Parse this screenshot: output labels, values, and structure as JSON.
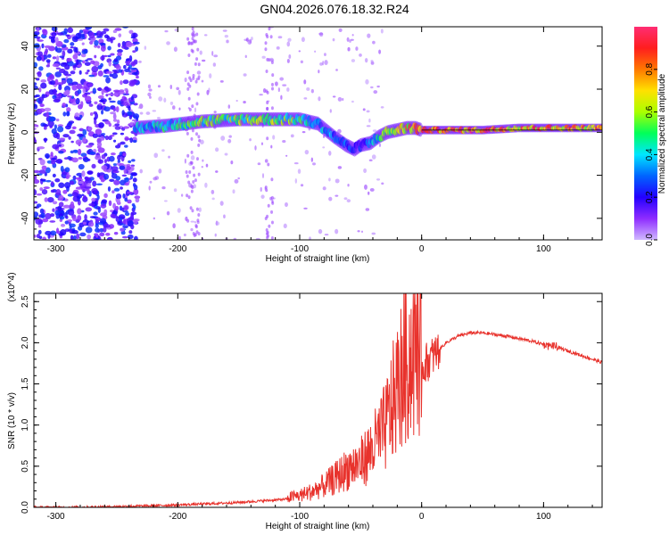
{
  "title": "GN04.2026.076.18.32.R24",
  "chart_data": [
    {
      "type": "heatmap",
      "title": "GN04.2026.076.18.32.R24",
      "xlabel": "Height of straight line (km)",
      "ylabel": "Frequency (Hz)",
      "xlim": [
        -318,
        148
      ],
      "ylim": [
        -50,
        49
      ],
      "xticks": [
        -300,
        -200,
        -100,
        0,
        100
      ],
      "yticks": [
        -40,
        -20,
        0,
        20,
        40
      ],
      "colorbar": {
        "label": "Normalized spectral amplitude",
        "range": [
          0,
          1
        ],
        "ticks": [
          0.0,
          0.2,
          0.4,
          0.6,
          0.8
        ],
        "colors": [
          "#d0b8ff",
          "#8e2cff",
          "#2300ff",
          "#0064ff",
          "#00e6ff",
          "#00ff5a",
          "#aaff00",
          "#ffe100",
          "#ff7800",
          "#ff1e1e",
          "#ff2d73"
        ]
      },
      "ridge": {
        "x": [
          -235,
          -210,
          -180,
          -150,
          -120,
          -100,
          -85,
          -72,
          -62,
          -55,
          -50,
          -42,
          -35,
          -28,
          -20,
          -12,
          -5,
          0,
          20,
          50,
          80,
          100,
          120,
          148
        ],
        "freq": [
          2,
          3,
          5,
          6,
          6,
          6,
          4,
          -2,
          -6,
          -8,
          -6,
          -5,
          -2,
          0,
          1,
          2,
          2,
          1,
          1,
          1,
          2,
          2,
          2,
          2
        ],
        "amplitude": [
          0.4,
          0.5,
          0.55,
          0.6,
          0.6,
          0.55,
          0.45,
          0.35,
          0.3,
          0.25,
          0.25,
          0.35,
          0.5,
          0.6,
          0.7,
          0.8,
          0.85,
          0.9,
          0.95,
          0.95,
          0.9,
          0.9,
          0.9,
          0.85
        ]
      }
    },
    {
      "type": "line",
      "xlabel": "Height of straight line (km)",
      "ylabel": "SNR (10 * v/v)",
      "y_multiplier": "(x10^4)",
      "xlim": [
        -318,
        148
      ],
      "ylim": [
        0,
        2.6
      ],
      "xticks": [
        -300,
        -200,
        -100,
        0,
        100
      ],
      "yticks": [
        0.0,
        0.5,
        1.0,
        1.5,
        2.0,
        2.5
      ],
      "color": "#e8322c",
      "series": [
        {
          "name": "SNR",
          "x": [
            -318,
            -280,
            -250,
            -220,
            -200,
            -180,
            -150,
            -130,
            -110,
            -100,
            -90,
            -80,
            -70,
            -60,
            -50,
            -40,
            -30,
            -25,
            -20,
            -15,
            -10,
            -5,
            0,
            10,
            20,
            30,
            40,
            50,
            60,
            70,
            80,
            90,
            100,
            110,
            120,
            130,
            140,
            148
          ],
          "y": [
            0.0,
            0.0,
            0.01,
            0.02,
            0.03,
            0.04,
            0.06,
            0.08,
            0.1,
            0.12,
            0.16,
            0.22,
            0.3,
            0.4,
            0.45,
            0.6,
            0.8,
            1.0,
            1.2,
            1.4,
            1.5,
            1.6,
            1.7,
            1.85,
            2.0,
            2.08,
            2.12,
            2.12,
            2.1,
            2.08,
            2.05,
            2.02,
            1.98,
            1.95,
            1.9,
            1.85,
            1.8,
            1.76
          ]
        }
      ]
    }
  ]
}
